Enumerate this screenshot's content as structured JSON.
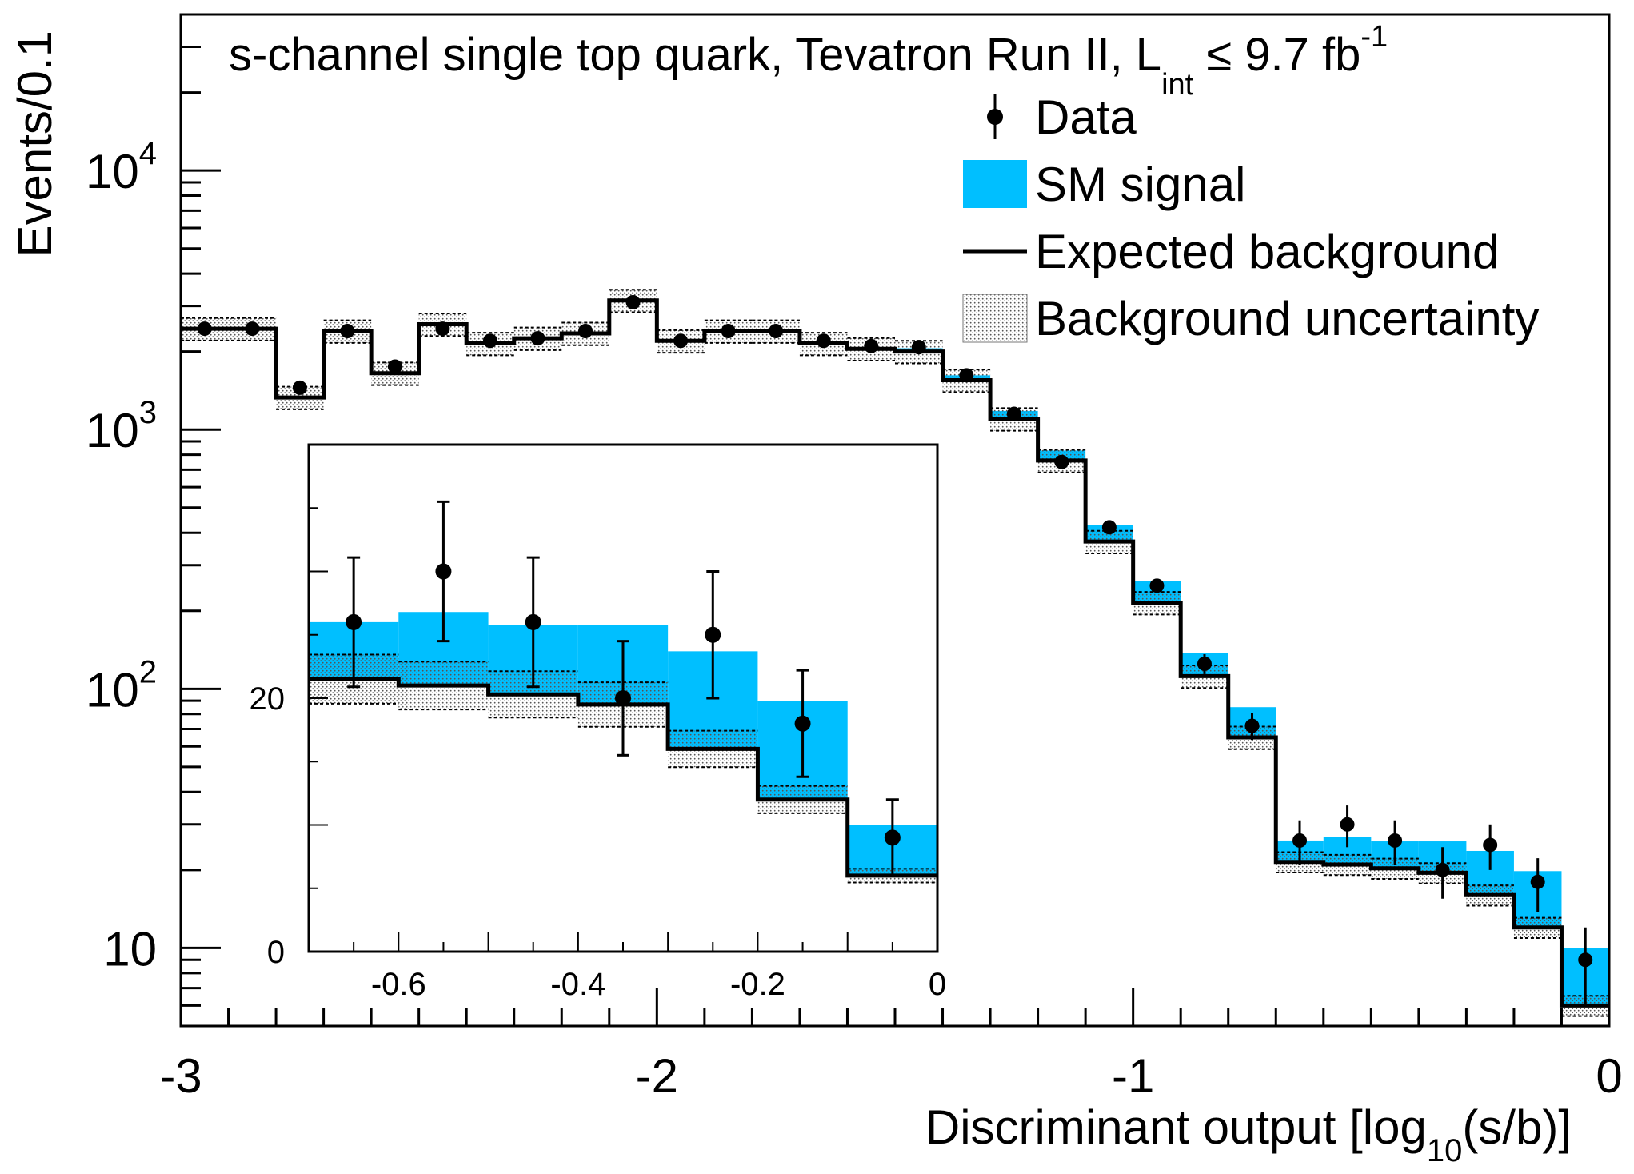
{
  "chart_data": {
    "type": "bar",
    "title": "s-channel single top quark, Tevatron Run II, L",
    "title_sub": "int",
    "title_rest": " ≤ 9.7 fb",
    "title_sup": "-1",
    "xlabel": "Discriminant output [log",
    "xlabel_sub": "10",
    "xlabel_rest": "(s/b)]",
    "ylabel": "Events/0.1",
    "xlim": [
      -3,
      0
    ],
    "ylim": [
      5,
      40000
    ],
    "yscale": "log",
    "x_ticks": [
      {
        "value": -3,
        "label": "-3"
      },
      {
        "value": -2,
        "label": "-2"
      },
      {
        "value": -1,
        "label": "-1"
      },
      {
        "value": 0,
        "label": "0"
      }
    ],
    "y_ticks": [
      {
        "value": 10,
        "label": "10",
        "sup": ""
      },
      {
        "value": 100,
        "label": "10",
        "sup": "2"
      },
      {
        "value": 1000,
        "label": "10",
        "sup": "3"
      },
      {
        "value": 10000,
        "label": "10",
        "sup": "4"
      }
    ],
    "legend": {
      "position": "top-right",
      "entries": [
        {
          "label": "Data",
          "kind": "point"
        },
        {
          "label": "SM signal",
          "kind": "fill",
          "color": "#00bfff"
        },
        {
          "label": "Expected background",
          "kind": "line"
        },
        {
          "label": "Background uncertainty",
          "kind": "hatch"
        }
      ]
    },
    "colors": {
      "signal": "#00bfff",
      "background_line": "#000000",
      "uncertainty": "#9a9a9a"
    },
    "bins": [
      {
        "x0": -3.0,
        "x1": -2.8,
        "bkg": 2450,
        "sig": 0,
        "unc": 0.1
      },
      {
        "x0": -2.8,
        "x1": -2.7,
        "bkg": 1330,
        "sig": 0,
        "unc": 0.1
      },
      {
        "x0": -2.7,
        "x1": -2.6,
        "bkg": 2400,
        "sig": 0,
        "unc": 0.1
      },
      {
        "x0": -2.6,
        "x1": -2.5,
        "bkg": 1650,
        "sig": 0,
        "unc": 0.1
      },
      {
        "x0": -2.5,
        "x1": -2.4,
        "bkg": 2550,
        "sig": 0,
        "unc": 0.1
      },
      {
        "x0": -2.4,
        "x1": -2.3,
        "bkg": 2150,
        "sig": 0,
        "unc": 0.1
      },
      {
        "x0": -2.3,
        "x1": -2.2,
        "bkg": 2250,
        "sig": 0,
        "unc": 0.1
      },
      {
        "x0": -2.2,
        "x1": -2.1,
        "bkg": 2350,
        "sig": 0,
        "unc": 0.1
      },
      {
        "x0": -2.1,
        "x1": -2.0,
        "bkg": 3150,
        "sig": 0,
        "unc": 0.1
      },
      {
        "x0": -2.0,
        "x1": -1.9,
        "bkg": 2200,
        "sig": 0,
        "unc": 0.1
      },
      {
        "x0": -1.9,
        "x1": -1.8,
        "bkg": 2400,
        "sig": 0,
        "unc": 0.1
      },
      {
        "x0": -1.8,
        "x1": -1.7,
        "bkg": 2400,
        "sig": 0,
        "unc": 0.1
      },
      {
        "x0": -1.7,
        "x1": -1.6,
        "bkg": 2150,
        "sig": 0,
        "unc": 0.1
      },
      {
        "x0": -1.6,
        "x1": -1.5,
        "bkg": 2050,
        "sig": 0,
        "unc": 0.1
      },
      {
        "x0": -1.5,
        "x1": -1.4,
        "bkg": 2000,
        "sig": 60,
        "unc": 0.1
      },
      {
        "x0": -1.4,
        "x1": -1.3,
        "bkg": 1550,
        "sig": 70,
        "unc": 0.1
      },
      {
        "x0": -1.3,
        "x1": -1.2,
        "bkg": 1100,
        "sig": 80,
        "unc": 0.1
      },
      {
        "x0": -1.2,
        "x1": -1.1,
        "bkg": 760,
        "sig": 70,
        "unc": 0.1
      },
      {
        "x0": -1.1,
        "x1": -1.0,
        "bkg": 370,
        "sig": 60,
        "unc": 0.1
      },
      {
        "x0": -1.0,
        "x1": -0.9,
        "bkg": 215,
        "sig": 45,
        "unc": 0.1
      },
      {
        "x0": -0.9,
        "x1": -0.8,
        "bkg": 112,
        "sig": 26,
        "unc": 0.1
      },
      {
        "x0": -0.8,
        "x1": -0.7,
        "bkg": 65,
        "sig": 20,
        "unc": 0.1
      },
      {
        "x0": -0.7,
        "x1": -0.6,
        "bkg": 21.5,
        "sig": 4.5,
        "unc": 0.09
      },
      {
        "x0": -0.6,
        "x1": -0.5,
        "bkg": 21,
        "sig": 5.8,
        "unc": 0.09
      },
      {
        "x0": -0.5,
        "x1": -0.4,
        "bkg": 20.3,
        "sig": 5.5,
        "unc": 0.09
      },
      {
        "x0": -0.4,
        "x1": -0.3,
        "bkg": 19.5,
        "sig": 6.3,
        "unc": 0.09
      },
      {
        "x0": -0.3,
        "x1": -0.2,
        "bkg": 16.0,
        "sig": 7.7,
        "unc": 0.09
      },
      {
        "x0": -0.2,
        "x1": -0.1,
        "bkg": 12.0,
        "sig": 7.8,
        "unc": 0.09
      },
      {
        "x0": -0.1,
        "x1": 0.0,
        "bkg": 6.0,
        "sig": 4.0,
        "unc": 0.09
      }
    ],
    "data_points": [
      {
        "x": -2.95,
        "y": 2450,
        "err": 50
      },
      {
        "x": -2.85,
        "y": 2450,
        "err": 50
      },
      {
        "x": -2.75,
        "y": 1450,
        "err": 38
      },
      {
        "x": -2.65,
        "y": 2400,
        "err": 49
      },
      {
        "x": -2.55,
        "y": 1750,
        "err": 42
      },
      {
        "x": -2.45,
        "y": 2450,
        "err": 50
      },
      {
        "x": -2.35,
        "y": 2200,
        "err": 47
      },
      {
        "x": -2.25,
        "y": 2250,
        "err": 47
      },
      {
        "x": -2.15,
        "y": 2400,
        "err": 49
      },
      {
        "x": -2.05,
        "y": 3100,
        "err": 56
      },
      {
        "x": -1.95,
        "y": 2200,
        "err": 47
      },
      {
        "x": -1.85,
        "y": 2400,
        "err": 49
      },
      {
        "x": -1.75,
        "y": 2400,
        "err": 49
      },
      {
        "x": -1.65,
        "y": 2200,
        "err": 47
      },
      {
        "x": -1.55,
        "y": 2100,
        "err": 46
      },
      {
        "x": -1.45,
        "y": 2080,
        "err": 46
      },
      {
        "x": -1.35,
        "y": 1620,
        "err": 40
      },
      {
        "x": -1.25,
        "y": 1150,
        "err": 34
      },
      {
        "x": -1.15,
        "y": 750,
        "err": 27
      },
      {
        "x": -1.05,
        "y": 420,
        "err": 20
      },
      {
        "x": -0.95,
        "y": 250,
        "err": 16
      },
      {
        "x": -0.85,
        "y": 125,
        "err": 11
      },
      {
        "x": -0.75,
        "y": 72,
        "err": 8.5
      },
      {
        "x": -0.65,
        "y": 26,
        "err": 5.1
      },
      {
        "x": -0.55,
        "y": 30,
        "err": 5.5
      },
      {
        "x": -0.45,
        "y": 26,
        "err": 5.1
      },
      {
        "x": -0.35,
        "y": 20,
        "err": 4.5
      },
      {
        "x": -0.25,
        "y": 25,
        "err": 5.0
      },
      {
        "x": -0.15,
        "y": 18,
        "err": 4.2
      },
      {
        "x": -0.05,
        "y": 9,
        "err": 3.0
      }
    ],
    "inset": {
      "xlim": [
        -0.7,
        0
      ],
      "ylim": [
        0,
        40
      ],
      "x_ticks": [
        {
          "value": -0.6,
          "label": "-0.6"
        },
        {
          "value": -0.4,
          "label": "-0.4"
        },
        {
          "value": -0.2,
          "label": "-0.2"
        },
        {
          "value": 0,
          "label": "0"
        }
      ],
      "y_ticks": [
        {
          "value": 0,
          "label": "0"
        },
        {
          "value": 20,
          "label": "20"
        }
      ]
    }
  }
}
